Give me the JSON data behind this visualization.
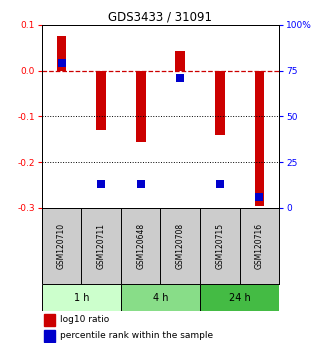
{
  "title": "GDS3433 / 31091",
  "samples": [
    "GSM120710",
    "GSM120711",
    "GSM120648",
    "GSM120708",
    "GSM120715",
    "GSM120716"
  ],
  "log10_ratio": [
    0.075,
    -0.13,
    -0.155,
    0.042,
    -0.14,
    -0.295
  ],
  "percentile_rank": [
    79,
    13,
    13,
    71,
    13,
    6
  ],
  "time_groups": [
    {
      "label": "1 h",
      "start": 0,
      "end": 2,
      "color": "#ccffcc"
    },
    {
      "label": "4 h",
      "start": 2,
      "end": 4,
      "color": "#88dd88"
    },
    {
      "label": "24 h",
      "start": 4,
      "end": 6,
      "color": "#44bb44"
    }
  ],
  "ylim_left": [
    -0.3,
    0.1
  ],
  "ylim_right": [
    0,
    100
  ],
  "yticks_left": [
    -0.3,
    -0.2,
    -0.1,
    0.0,
    0.1
  ],
  "yticks_right": [
    0,
    25,
    50,
    75,
    100
  ],
  "ytick_labels_right": [
    "0",
    "25",
    "50",
    "75",
    "100%"
  ],
  "bar_color": "#cc0000",
  "dot_color": "#0000cc",
  "dashed_color": "#cc0000",
  "grid_color": "#000000",
  "bg_color": "#ffffff",
  "bar_width": 0.25,
  "dot_size": 28,
  "label_bg": "#cccccc"
}
